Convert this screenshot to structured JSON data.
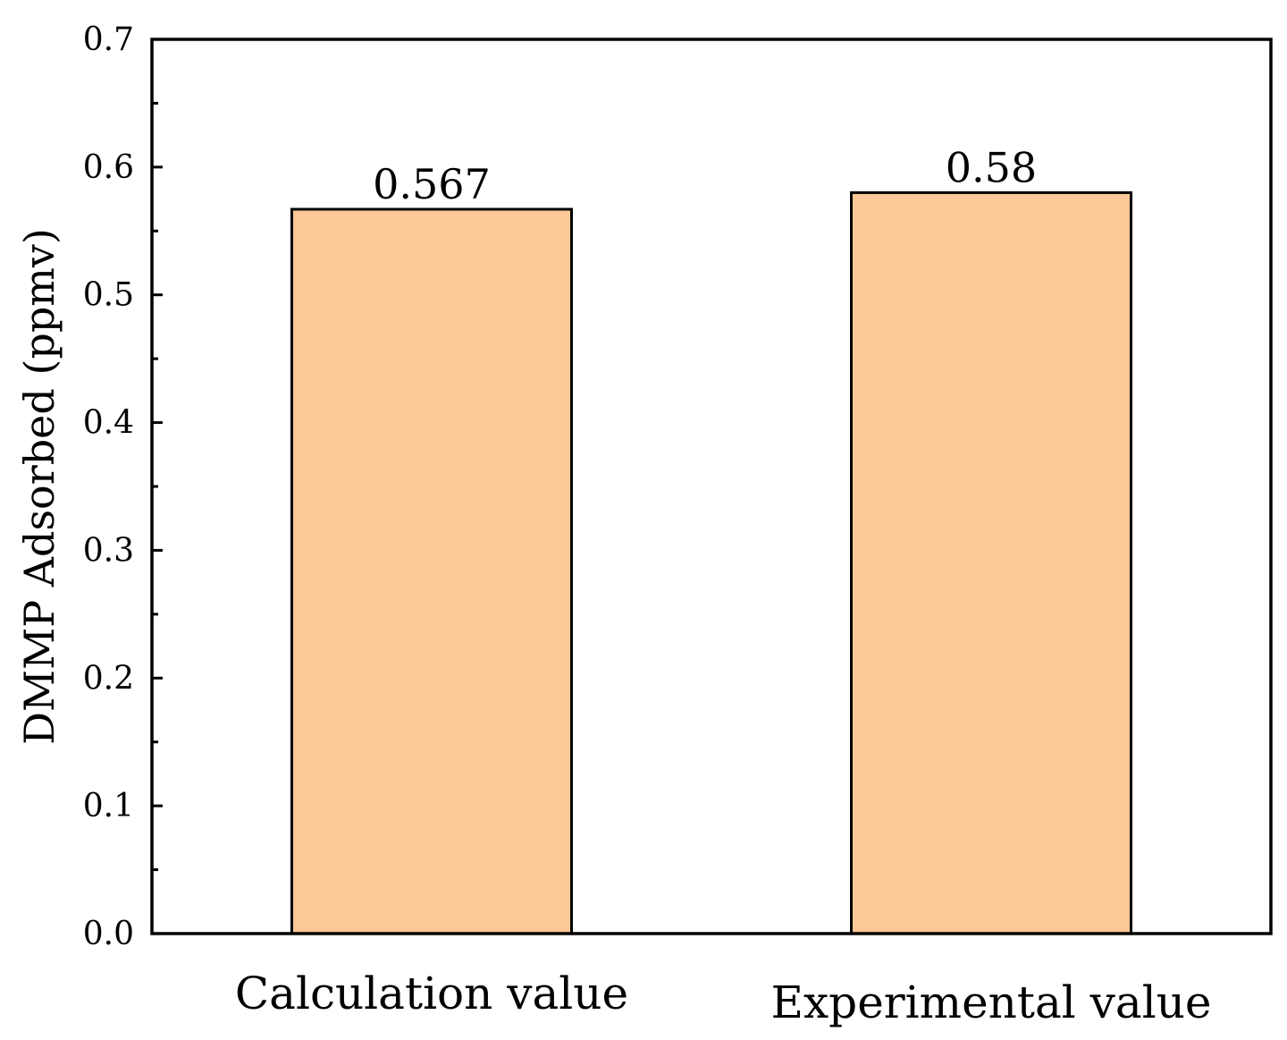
{
  "chart_data": {
    "type": "bar",
    "title": "",
    "xlabel": "",
    "ylabel": "DMMP Adsorbed (ppmv)",
    "categories": [
      "Calculation value",
      "Experimental value"
    ],
    "values": [
      0.567,
      0.58
    ],
    "data_labels": [
      "0.567",
      "0.58"
    ],
    "ylim": [
      0.0,
      0.7
    ],
    "yticks": [
      0.0,
      0.1,
      0.2,
      0.3,
      0.4,
      0.5,
      0.6,
      0.7
    ],
    "ytick_labels": [
      "0.0",
      "0.1",
      "0.2",
      "0.3",
      "0.4",
      "0.5",
      "0.6",
      "0.7"
    ],
    "grid": false,
    "bar_color": "#FBC896",
    "bar_edge_color": "#000000"
  }
}
